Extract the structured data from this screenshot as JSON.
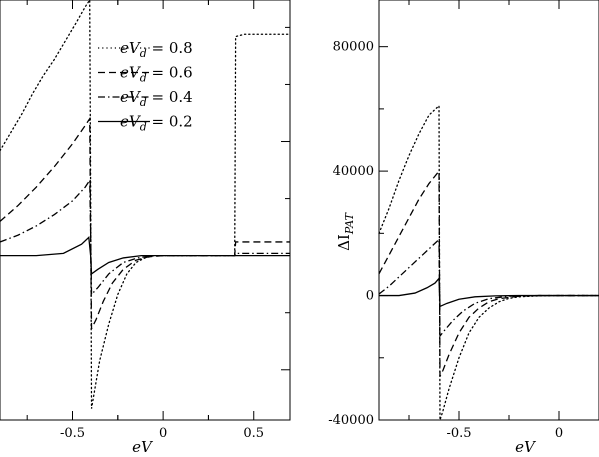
{
  "chart_data": [
    {
      "type": "line",
      "title": "",
      "xlabel": "eV",
      "ylabel": "",
      "xlim": [
        -0.9,
        0.7
      ],
      "ylim": [
        -0.72,
        1.12
      ],
      "x_ticks": [
        -0.5,
        0,
        0.5
      ],
      "x_tick_labels": [
        "-0.5",
        "0",
        "0.5"
      ],
      "y_tick_labels": [],
      "grid": false,
      "legend_position": "top-right",
      "legend": [
        {
          "label_pre": "eV",
          "label_sub": "d",
          "label_post": " = 0.8",
          "dash": "dotted"
        },
        {
          "label_pre": "eV",
          "label_sub": "d",
          "label_post": " = 0.6",
          "dash": "dashed"
        },
        {
          "label_pre": "eV",
          "label_sub": "d",
          "label_post": " = 0.4",
          "dash": "dashdot"
        },
        {
          "label_pre": "eV",
          "label_sub": "d",
          "label_post": " = 0.2",
          "dash": "solid"
        }
      ],
      "series": [
        {
          "dash": "dotted",
          "x": [
            -0.9,
            -0.84,
            -0.78,
            -0.72,
            -0.66,
            -0.6,
            -0.54,
            -0.48,
            -0.43,
            -0.405,
            -0.4,
            -0.395,
            -0.38,
            -0.35,
            -0.3,
            -0.25,
            -0.2,
            -0.15,
            -0.1,
            -0.05,
            0,
            0.1,
            0.2,
            0.3,
            0.395,
            0.4,
            0.45,
            0.55,
            0.7
          ],
          "y": [
            0.46,
            0.54,
            0.62,
            0.71,
            0.79,
            0.86,
            0.94,
            1.02,
            1.09,
            1.12,
            0.3,
            -0.67,
            -0.6,
            -0.46,
            -0.3,
            -0.17,
            -0.08,
            -0.03,
            -0.01,
            0.0,
            0.0,
            0.0,
            0.0,
            0.0,
            0.0,
            0.96,
            0.97,
            0.97,
            0.97
          ]
        },
        {
          "dash": "dashed",
          "x": [
            -0.9,
            -0.8,
            -0.7,
            -0.6,
            -0.5,
            -0.43,
            -0.405,
            -0.4,
            -0.395,
            -0.37,
            -0.33,
            -0.28,
            -0.22,
            -0.15,
            -0.08,
            0,
            0.2,
            0.395,
            0.4,
            0.5,
            0.7
          ],
          "y": [
            0.15,
            0.22,
            0.3,
            0.39,
            0.49,
            0.57,
            0.6,
            0.1,
            -0.32,
            -0.28,
            -0.2,
            -0.12,
            -0.06,
            -0.02,
            -0.005,
            0.0,
            0.0,
            0.0,
            0.06,
            0.06,
            0.06
          ]
        },
        {
          "dash": "dashdot",
          "x": [
            -0.9,
            -0.8,
            -0.7,
            -0.6,
            -0.5,
            -0.43,
            -0.405,
            -0.4,
            -0.395,
            -0.36,
            -0.3,
            -0.22,
            -0.14,
            -0.06,
            0,
            0.2,
            0.395,
            0.4,
            0.5,
            0.7
          ],
          "y": [
            0.06,
            0.09,
            0.13,
            0.18,
            0.24,
            0.3,
            0.33,
            0.1,
            -0.17,
            -0.14,
            -0.08,
            -0.03,
            -0.01,
            0.0,
            0.0,
            0.0,
            0.0,
            0.01,
            0.01,
            0.01
          ]
        },
        {
          "dash": "solid",
          "x": [
            -0.9,
            -0.7,
            -0.55,
            -0.45,
            -0.41,
            -0.4,
            -0.395,
            -0.36,
            -0.3,
            -0.22,
            -0.12,
            0,
            0.2,
            0.4,
            0.7
          ],
          "y": [
            0.0,
            0.0,
            0.01,
            0.05,
            0.08,
            0.0,
            -0.08,
            -0.06,
            -0.03,
            -0.01,
            0.0,
            0.0,
            0.0,
            0.0,
            0.0
          ]
        }
      ]
    },
    {
      "type": "line",
      "title": "",
      "xlabel": "eV",
      "ylabel_main": "ΔI",
      "ylabel_sub": "PAT",
      "xlim": [
        -0.9,
        0.2
      ],
      "ylim": [
        -40000,
        95000
      ],
      "x_ticks": [
        -0.5,
        0
      ],
      "x_tick_labels": [
        "-0.5",
        "0"
      ],
      "y_ticks": [
        -40000,
        0,
        40000,
        80000
      ],
      "y_tick_labels": [
        "-40000",
        "0",
        "40000",
        "80000"
      ],
      "grid": false,
      "series": [
        {
          "dash": "dotted",
          "x": [
            -0.9,
            -0.85,
            -0.8,
            -0.75,
            -0.7,
            -0.65,
            -0.6,
            -0.595,
            -0.58,
            -0.55,
            -0.5,
            -0.45,
            -0.4,
            -0.35,
            -0.3,
            -0.25,
            -0.2,
            -0.1,
            0,
            0.2
          ],
          "y": [
            20000,
            28000,
            37000,
            45000,
            52000,
            58000,
            61000,
            -40000,
            -37000,
            -30000,
            -20000,
            -12000,
            -7000,
            -4000,
            -2000,
            -900,
            -400,
            -100,
            0,
            0
          ]
        },
        {
          "dash": "dashed",
          "x": [
            -0.9,
            -0.85,
            -0.8,
            -0.75,
            -0.7,
            -0.65,
            -0.6,
            -0.595,
            -0.58,
            -0.55,
            -0.5,
            -0.45,
            -0.4,
            -0.35,
            -0.3,
            -0.2,
            -0.1,
            0,
            0.2
          ],
          "y": [
            7000,
            13000,
            19000,
            25000,
            31000,
            36000,
            40000,
            -26000,
            -24000,
            -19000,
            -12000,
            -7000,
            -4000,
            -2000,
            -1000,
            -200,
            0,
            0,
            0
          ]
        },
        {
          "dash": "dashdot",
          "x": [
            -0.9,
            -0.85,
            -0.8,
            -0.75,
            -0.7,
            -0.65,
            -0.6,
            -0.595,
            -0.57,
            -0.53,
            -0.48,
            -0.42,
            -0.35,
            -0.25,
            -0.1,
            0.2
          ],
          "y": [
            500,
            3000,
            6000,
            9000,
            12000,
            15000,
            18000,
            -13000,
            -11000,
            -8000,
            -5000,
            -2500,
            -1000,
            -200,
            0,
            0
          ]
        },
        {
          "dash": "solid",
          "x": [
            -0.9,
            -0.8,
            -0.72,
            -0.66,
            -0.62,
            -0.6,
            -0.595,
            -0.56,
            -0.5,
            -0.42,
            -0.32,
            -0.2,
            0.2
          ],
          "y": [
            0,
            0,
            800,
            2500,
            4000,
            5500,
            -3500,
            -2500,
            -1200,
            -400,
            -100,
            0,
            0
          ]
        }
      ]
    }
  ]
}
